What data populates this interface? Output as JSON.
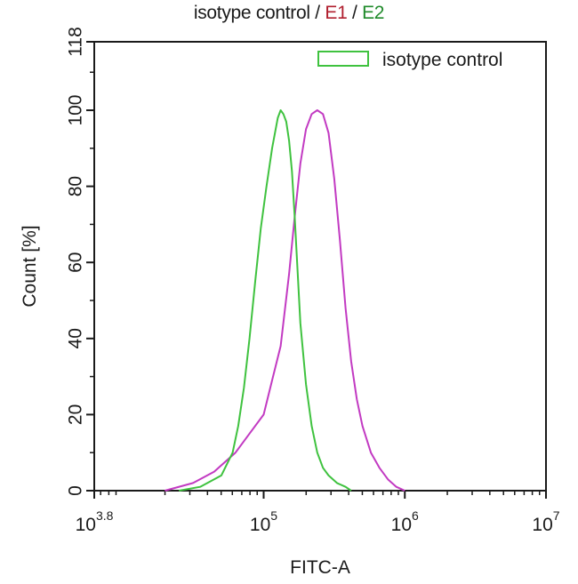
{
  "title_parts": {
    "a": "isotype control",
    "sep1": " / ",
    "b": "E1",
    "sep2": " / ",
    "c": "E2"
  },
  "colors": {
    "isotype": "#3fc23f",
    "sample": "#c23ac2",
    "e1_text": "#b01e2e",
    "e2_text": "#1f8a2a",
    "axis": "#1a1a1a"
  },
  "chart_data": {
    "type": "area",
    "title": "isotype control / E1 / E2",
    "xlabel": "FITC-A",
    "ylabel": "Count [%]",
    "xscale": "log",
    "xlim": [
      3.8,
      7
    ],
    "ylim": [
      0,
      118
    ],
    "x_ticks": [
      {
        "base": "10",
        "exp": "3.8",
        "value": 3.8
      },
      {
        "base": "10",
        "exp": "5",
        "value": 5
      },
      {
        "base": "10",
        "exp": "6",
        "value": 6
      },
      {
        "base": "10",
        "exp": "7",
        "value": 7
      }
    ],
    "y_ticks": [
      "0",
      "20",
      "40",
      "60",
      "80",
      "100",
      "118"
    ],
    "legend": {
      "position": "top-right",
      "entries": [
        {
          "label": "isotype control",
          "color": "#3fc23f"
        }
      ]
    },
    "series": [
      {
        "name": "isotype control",
        "color": "#3fc23f",
        "log_x": [
          4.4,
          4.55,
          4.7,
          4.78,
          4.82,
          4.86,
          4.9,
          4.94,
          4.98,
          5.02,
          5.06,
          5.1,
          5.12,
          5.14,
          5.16,
          5.18,
          5.2,
          5.22,
          5.24,
          5.26,
          5.3,
          5.34,
          5.38,
          5.42,
          5.46,
          5.52,
          5.58,
          5.62
        ],
        "values": [
          0,
          1,
          4,
          10,
          17,
          27,
          40,
          55,
          69,
          80,
          90,
          98,
          100,
          99,
          97,
          92,
          84,
          72,
          58,
          44,
          28,
          17,
          10,
          6,
          4,
          2,
          1,
          0
        ]
      },
      {
        "name": "",
        "color": "#c23ac2",
        "log_x": [
          4.3,
          4.5,
          4.65,
          4.8,
          4.9,
          5.0,
          5.06,
          5.12,
          5.18,
          5.22,
          5.26,
          5.3,
          5.34,
          5.38,
          5.42,
          5.46,
          5.5,
          5.54,
          5.58,
          5.62,
          5.66,
          5.7,
          5.76,
          5.82,
          5.88,
          5.94,
          6.0
        ],
        "values": [
          0,
          2,
          5,
          10,
          15,
          20,
          29,
          38,
          57,
          72,
          86,
          95,
          99,
          100,
          99,
          94,
          82,
          66,
          48,
          34,
          24,
          17,
          10,
          6,
          3,
          1,
          0
        ]
      }
    ]
  }
}
